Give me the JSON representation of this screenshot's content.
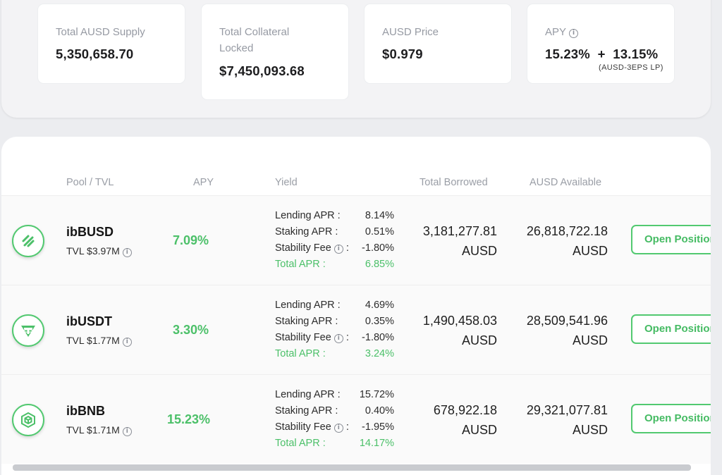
{
  "stats": [
    {
      "label": "Total AUSD Supply",
      "value": "5,350,658.70"
    },
    {
      "label": "Total Collateral Locked",
      "value": "$7,450,093.68"
    },
    {
      "label": "AUSD Price",
      "value": "$0.979"
    },
    {
      "label": "APY",
      "value": "15.23%  +  13.15%",
      "sub": "(AUSD-3EPS LP)"
    }
  ],
  "table": {
    "headers": {
      "pool": "Pool / TVL",
      "apy": "APY",
      "yield": "Yield",
      "borrowed": "Total Borrowed",
      "available": "AUSD Available"
    },
    "yield_labels": {
      "lending": "Lending APR :",
      "staking": "Staking APR :",
      "stability": "Stability Fee",
      "stability_colon": ":",
      "total": "Total APR :"
    },
    "rows": [
      {
        "icon": "busd-icon",
        "name": "ibBUSD",
        "tvl": "TVL $3.97M",
        "apy": "7.09%",
        "lending": "8.14%",
        "staking": "0.51%",
        "stability": "-1.80%",
        "total": "6.85%",
        "borrowed": "3,181,277.81",
        "borrowed_unit": "AUSD",
        "available": "26,818,722.18",
        "available_unit": "AUSD",
        "action": "Open Position"
      },
      {
        "icon": "usdt-icon",
        "name": "ibUSDT",
        "tvl": "TVL $1.77M",
        "apy": "3.30%",
        "lending": "4.69%",
        "staking": "0.35%",
        "stability": "-1.80%",
        "total": "3.24%",
        "borrowed": "1,490,458.03",
        "borrowed_unit": "AUSD",
        "available": "28,509,541.96",
        "available_unit": "AUSD",
        "action": "Open Position"
      },
      {
        "icon": "bnb-icon",
        "name": "ibBNB",
        "tvl": "TVL $1.71M",
        "apy": "15.23%",
        "lending": "15.72%",
        "staking": "0.40%",
        "stability": "-1.95%",
        "total": "14.17%",
        "borrowed": "678,922.18",
        "borrowed_unit": "AUSD",
        "available": "29,321,077.81",
        "available_unit": "AUSD",
        "action": "Open Position"
      }
    ]
  },
  "colors": {
    "accent": "#4cc069",
    "background": "#ecedf0",
    "card": "#ffffff"
  }
}
